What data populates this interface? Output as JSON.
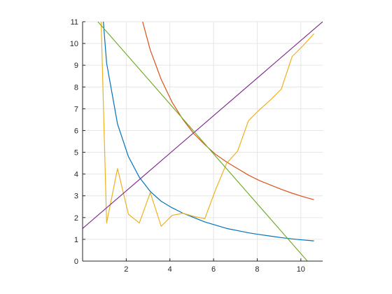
{
  "chart_data": {
    "type": "line",
    "grid": true,
    "xlim": [
      0,
      11
    ],
    "ylim": [
      0,
      11
    ],
    "x_ticks": [
      2,
      4,
      6,
      8,
      10
    ],
    "y_ticks": [
      0,
      1,
      2,
      3,
      4,
      5,
      6,
      7,
      8,
      9,
      10,
      11
    ],
    "x_tick_labels": [
      "2",
      "4",
      "6",
      "8",
      "10"
    ],
    "y_tick_labels": [
      "0",
      "1",
      "2",
      "3",
      "4",
      "5",
      "6",
      "7",
      "8",
      "9",
      "10",
      "11"
    ],
    "series": [
      {
        "color": "#0072bd",
        "x": [
          0.95,
          1.1,
          1.6,
          2.1,
          2.6,
          3.1,
          3.6,
          4.1,
          4.6,
          5.1,
          5.6,
          6.1,
          6.6,
          7.1,
          7.6,
          8.1,
          8.6,
          9.1,
          9.6,
          10.1,
          10.6
        ],
        "y": [
          11.0,
          9.1,
          6.3,
          4.8,
          3.85,
          3.2,
          2.75,
          2.45,
          2.2,
          2.0,
          1.8,
          1.65,
          1.5,
          1.4,
          1.3,
          1.22,
          1.15,
          1.08,
          1.02,
          0.97,
          0.93
        ]
      },
      {
        "color": "#d95319",
        "x": [
          2.75,
          3.1,
          3.6,
          4.1,
          4.6,
          5.1,
          5.6,
          6.1,
          6.6,
          7.1,
          7.6,
          8.1,
          8.6,
          9.1,
          9.6,
          10.1,
          10.6
        ],
        "y": [
          11.0,
          9.7,
          8.35,
          7.3,
          6.5,
          5.85,
          5.35,
          4.9,
          4.55,
          4.25,
          3.95,
          3.7,
          3.5,
          3.3,
          3.12,
          2.96,
          2.82
        ]
      },
      {
        "color": "#edb120",
        "x": [
          0.85,
          1.1,
          1.6,
          2.1,
          2.6,
          3.1,
          3.6,
          4.1,
          4.6,
          5.1,
          5.6,
          6.1,
          6.6,
          7.1,
          7.6,
          8.1,
          8.6,
          9.1,
          9.6,
          10.1,
          10.6
        ],
        "y": [
          11.0,
          1.75,
          4.25,
          2.15,
          1.75,
          3.15,
          1.6,
          2.1,
          2.2,
          2.05,
          1.95,
          3.3,
          4.5,
          5.05,
          6.45,
          6.95,
          7.4,
          7.9,
          9.4,
          9.9,
          10.45
        ]
      },
      {
        "color": "#7e2f8e",
        "x": [
          0,
          11
        ],
        "y": [
          1.5,
          11.0
        ]
      },
      {
        "color": "#77ac30",
        "x": [
          0.7,
          10.3
        ],
        "y": [
          11.0,
          0.0
        ]
      }
    ]
  }
}
